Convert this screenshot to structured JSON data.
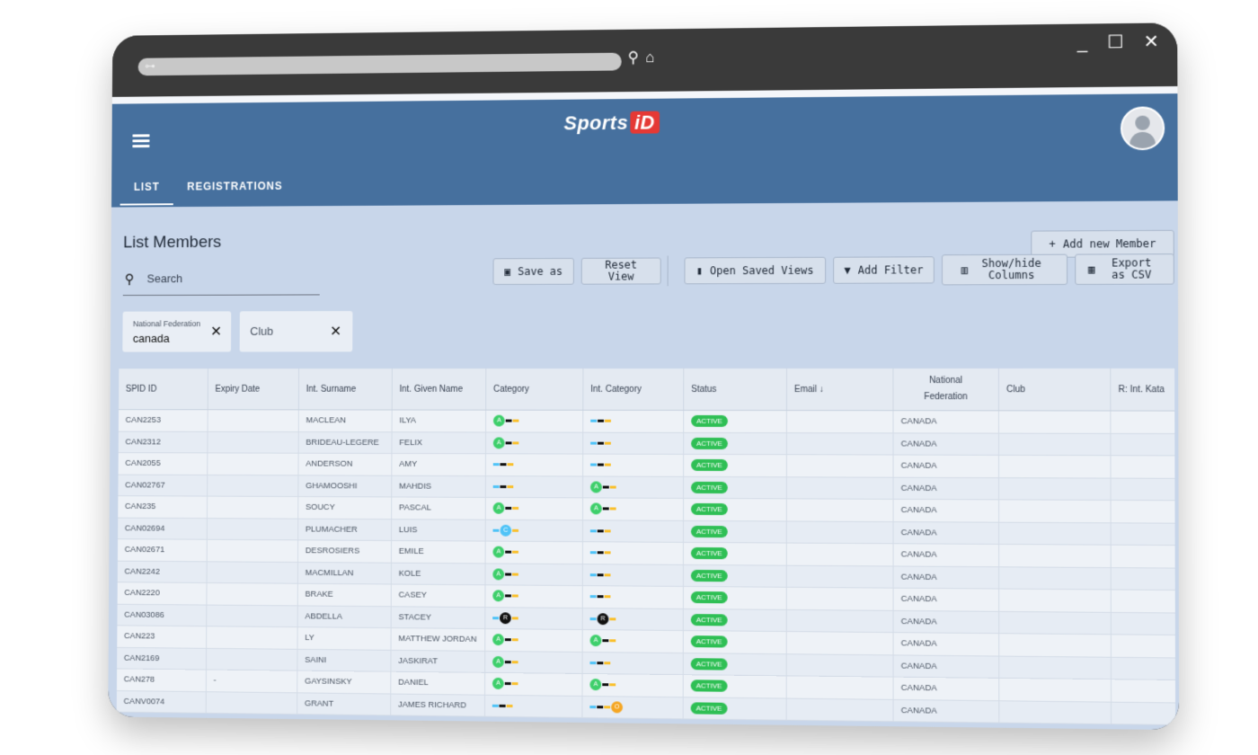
{
  "browser": {
    "window_controls": "_ ☐ ✕"
  },
  "app": {
    "logo_text": "Sports",
    "logo_id": "iD"
  },
  "tabs": [
    {
      "label": "LIST",
      "active": true
    },
    {
      "label": "REGISTRATIONS",
      "active": false
    }
  ],
  "page": {
    "title": "List Members"
  },
  "search": {
    "placeholder": "Search"
  },
  "toolbar": {
    "add_member": "Add new Member",
    "save_as": "Save as",
    "reset_view": "Reset View",
    "open_saved_views": "Open Saved Views",
    "add_filter": "Add Filter",
    "show_hide_columns": "Show/hide Columns",
    "export_csv": "Export as CSV"
  },
  "filters": [
    {
      "label": "National Federation",
      "value": "canada"
    },
    {
      "label": "",
      "value": "Club"
    }
  ],
  "table": {
    "columns": [
      "SPID ID",
      "Expiry Date",
      "Int. Surname",
      "Int. Given Name",
      "Category",
      "Int. Category",
      "Status",
      "Email",
      "National Federation",
      "Club",
      "R: Int. Kata"
    ],
    "sort_indicator": "↓",
    "rows": [
      {
        "id": "CAN2253",
        "expiry": "",
        "surname": "MACLEAN",
        "given": "ILYA",
        "cat": "A",
        "intcat": "",
        "status": "ACTIVE",
        "fed": "CANADA"
      },
      {
        "id": "CAN2312",
        "expiry": "",
        "surname": "BRIDEAU-LEGERE",
        "given": "FELIX",
        "cat": "A",
        "intcat": "",
        "status": "ACTIVE",
        "fed": "CANADA"
      },
      {
        "id": "CAN2055",
        "expiry": "",
        "surname": "ANDERSON",
        "given": "AMY",
        "cat": "",
        "intcat": "",
        "status": "ACTIVE",
        "fed": "CANADA"
      },
      {
        "id": "CAN02767",
        "expiry": "",
        "surname": "GHAMOOSHI",
        "given": "MAHDIS",
        "cat": "",
        "intcat": "A",
        "status": "ACTIVE",
        "fed": "CANADA"
      },
      {
        "id": "CAN235",
        "expiry": "",
        "surname": "SOUCY",
        "given": "PASCAL",
        "cat": "A",
        "intcat": "A",
        "status": "ACTIVE",
        "fed": "CANADA"
      },
      {
        "id": "CAN02694",
        "expiry": "",
        "surname": "PLUMACHER",
        "given": "LUIS",
        "cat": "C",
        "intcat": "",
        "status": "ACTIVE",
        "fed": "CANADA"
      },
      {
        "id": "CAN02671",
        "expiry": "",
        "surname": "DESROSIERS",
        "given": "EMILE",
        "cat": "A",
        "intcat": "",
        "status": "ACTIVE",
        "fed": "CANADA"
      },
      {
        "id": "CAN2242",
        "expiry": "",
        "surname": "MACMILLAN",
        "given": "KOLE",
        "cat": "A",
        "intcat": "",
        "status": "ACTIVE",
        "fed": "CANADA"
      },
      {
        "id": "CAN2220",
        "expiry": "",
        "surname": "BRAKE",
        "given": "CASEY",
        "cat": "A",
        "intcat": "",
        "status": "ACTIVE",
        "fed": "CANADA"
      },
      {
        "id": "CAN03086",
        "expiry": "",
        "surname": "ABDELLA",
        "given": "STACEY",
        "cat": "R",
        "intcat": "R",
        "status": "ACTIVE",
        "fed": "CANADA"
      },
      {
        "id": "CAN223",
        "expiry": "",
        "surname": "LY",
        "given": "MATTHEW JORDAN",
        "cat": "A",
        "intcat": "A",
        "status": "ACTIVE",
        "fed": "CANADA"
      },
      {
        "id": "CAN2169",
        "expiry": "",
        "surname": "SAINI",
        "given": "JASKIRAT",
        "cat": "A",
        "intcat": "",
        "status": "ACTIVE",
        "fed": "CANADA"
      },
      {
        "id": "CAN278",
        "expiry": "-",
        "surname": "GAYSINSKY",
        "given": "DANIEL",
        "cat": "A",
        "intcat": "A",
        "status": "ACTIVE",
        "fed": "CANADA"
      },
      {
        "id": "CANV0074",
        "expiry": "",
        "surname": "GRANT",
        "given": "JAMES RICHARD",
        "cat": "",
        "intcat": "O",
        "status": "ACTIVE",
        "fed": "CANADA"
      }
    ]
  },
  "colors": {
    "header": "#46709e",
    "body": "#c8d6ea",
    "status_active": "#2fbf55",
    "belt_blue": "#4fc3f7",
    "belt_black": "#111111",
    "belt_yellow": "#f9c02d",
    "badge_green": "#3ecf6b",
    "badge_orange": "#f5a623"
  }
}
